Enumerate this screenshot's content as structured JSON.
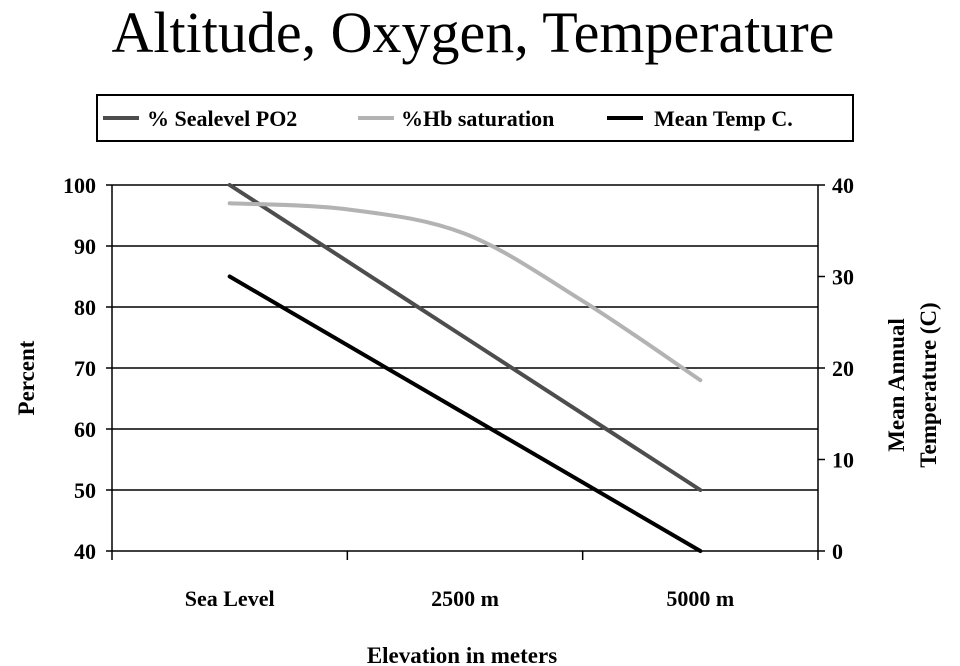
{
  "chart_data": {
    "type": "line",
    "title": "Altitude, Oxygen, Temperature",
    "xlabel": "Elevation in meters",
    "ylabel": "Percent",
    "y2label_lines": [
      "Mean Annual",
      "Temperature (C)"
    ],
    "categories": [
      "Sea Level",
      "2500 m",
      "5000 m"
    ],
    "x_ticks_count": 4,
    "ylim": [
      40,
      100
    ],
    "yticks": [
      40,
      50,
      60,
      70,
      80,
      90,
      100
    ],
    "y2lim": [
      0,
      40
    ],
    "y2ticks": [
      0,
      10,
      20,
      30,
      40
    ],
    "grid": true,
    "legend_position": "top",
    "series": [
      {
        "name": "% Sealevel PO2",
        "axis": "left",
        "color": "#4d4d4d",
        "x": [
          0,
          1,
          2
        ],
        "values": [
          100,
          75,
          50
        ]
      },
      {
        "name": "%Hb saturation",
        "axis": "left",
        "color": "#b3b3b3",
        "x": [
          0,
          0.5,
          1,
          1.5,
          2
        ],
        "values": [
          97,
          96,
          92,
          81,
          68
        ]
      },
      {
        "name": "Mean Temp C.",
        "axis": "right",
        "color": "#000000",
        "x": [
          0,
          1,
          2
        ],
        "values": [
          30,
          15,
          0
        ]
      }
    ]
  }
}
